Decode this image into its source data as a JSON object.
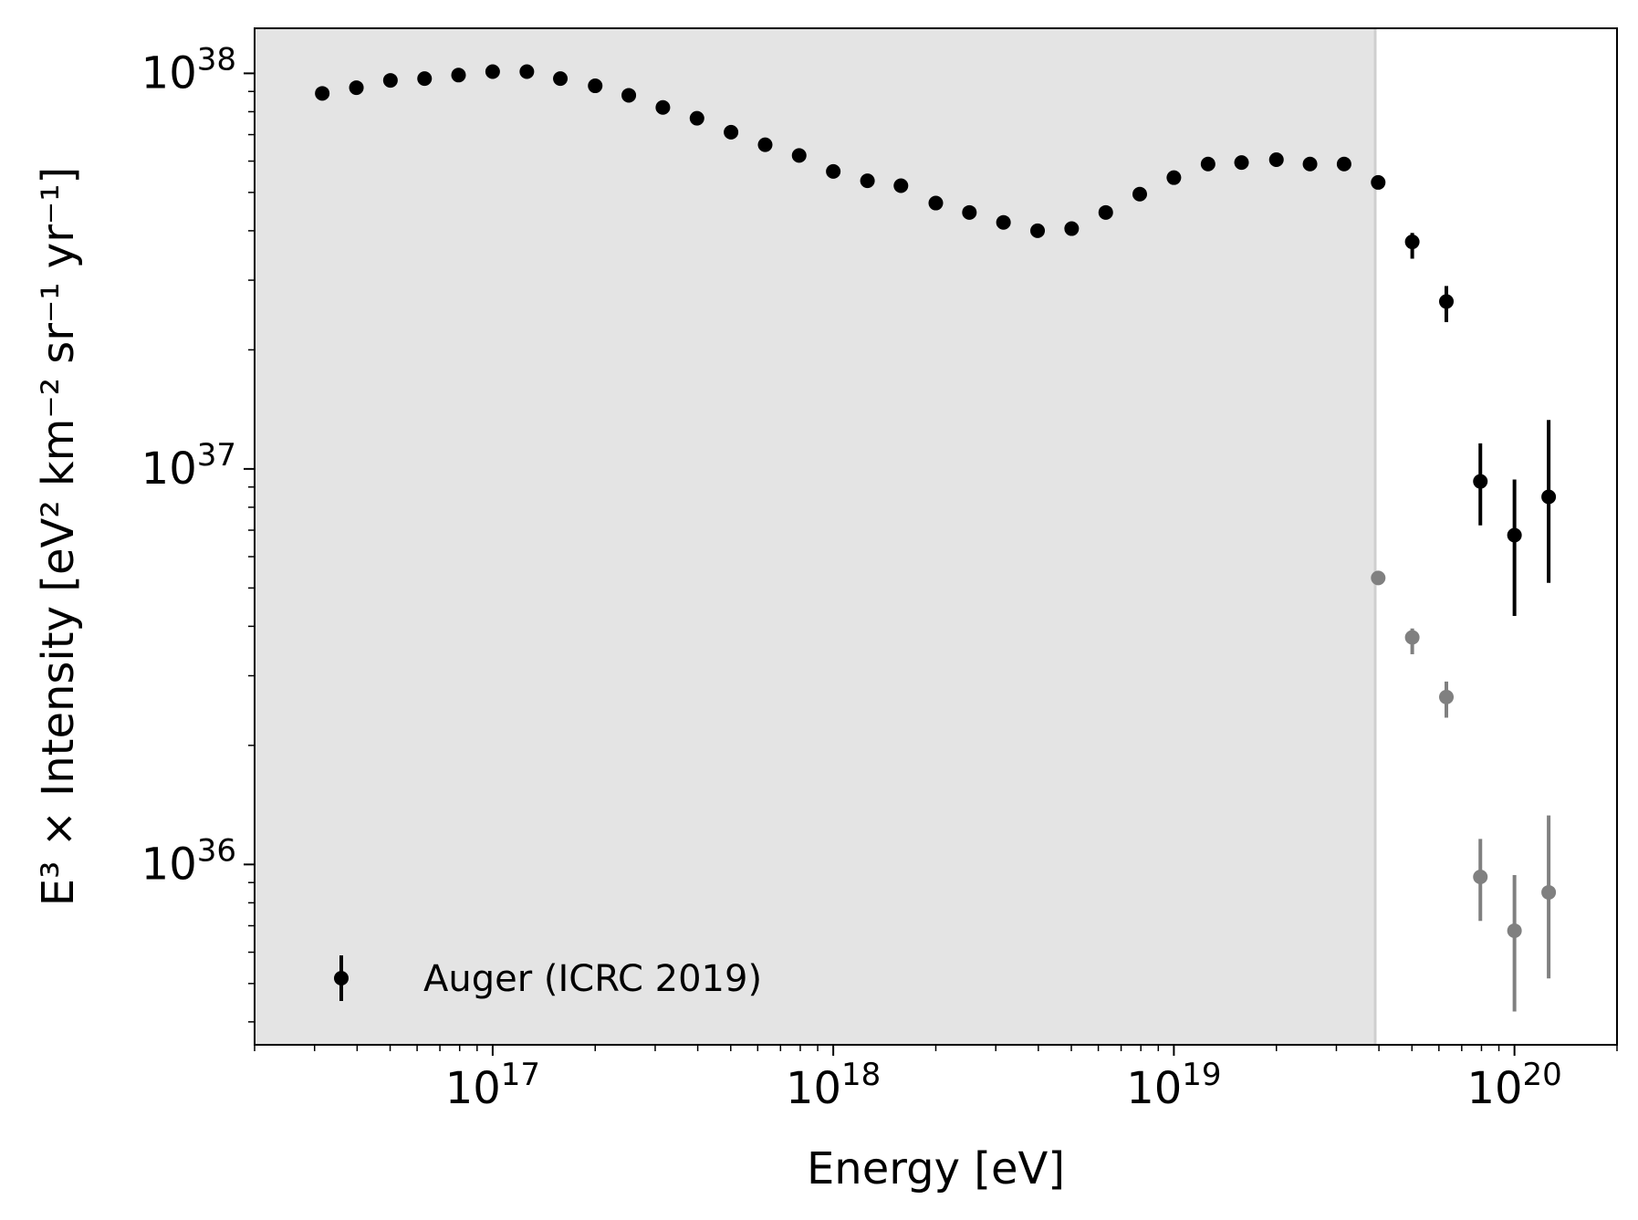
{
  "chart_data": {
    "type": "scatter",
    "title": "",
    "xlabel": "Energy [eV]",
    "ylabel": "E³ × Intensity [eV² km⁻² sr⁻¹ yr⁻¹]",
    "x_scale": "log",
    "y_scale": "log",
    "xlim": [
      2e+16,
      2e+20
    ],
    "ylim": [
      3.5e+35,
      1.3e+38
    ],
    "grid": false,
    "legend_position": "bottom-left",
    "x_ticks": [
      {
        "value": 1e+17,
        "base": "10",
        "exp": "17"
      },
      {
        "value": 1e+18,
        "base": "10",
        "exp": "18"
      },
      {
        "value": 1e+19,
        "base": "10",
        "exp": "19"
      },
      {
        "value": 1e+20,
        "base": "10",
        "exp": "20"
      }
    ],
    "y_ticks": [
      {
        "value": 1e+36,
        "base": "10",
        "exp": "36"
      },
      {
        "value": 1e+37,
        "base": "10",
        "exp": "37"
      },
      {
        "value": 1e+38,
        "base": "10",
        "exp": "38"
      }
    ],
    "shaded_region": {
      "x_from": 2e+16,
      "x_to": 3.9e+19,
      "color": "#e4e4e4"
    },
    "series": [
      {
        "name": "Auger (ICRC 2019)",
        "color": "#000000",
        "points": [
          {
            "x": 3.16e+16,
            "y": 8.9e+37
          },
          {
            "x": 3.98e+16,
            "y": 9.2e+37
          },
          {
            "x": 5.01e+16,
            "y": 9.6e+37
          },
          {
            "x": 6.31e+16,
            "y": 9.7e+37
          },
          {
            "x": 7.94e+16,
            "y": 9.9e+37
          },
          {
            "x": 1e+17,
            "y": 1.01e+38
          },
          {
            "x": 1.26e+17,
            "y": 1.01e+38
          },
          {
            "x": 1.58e+17,
            "y": 9.7e+37
          },
          {
            "x": 2e+17,
            "y": 9.3e+37
          },
          {
            "x": 2.51e+17,
            "y": 8.8e+37
          },
          {
            "x": 3.16e+17,
            "y": 8.2e+37
          },
          {
            "x": 3.98e+17,
            "y": 7.7e+37
          },
          {
            "x": 5.01e+17,
            "y": 7.1e+37
          },
          {
            "x": 6.31e+17,
            "y": 6.6e+37
          },
          {
            "x": 7.94e+17,
            "y": 6.2e+37
          },
          {
            "x": 1e+18,
            "y": 5.65e+37
          },
          {
            "x": 1.26e+18,
            "y": 5.35e+37
          },
          {
            "x": 1.58e+18,
            "y": 5.2e+37
          },
          {
            "x": 2e+18,
            "y": 4.7e+37
          },
          {
            "x": 2.51e+18,
            "y": 4.45e+37
          },
          {
            "x": 3.16e+18,
            "y": 4.2e+37
          },
          {
            "x": 3.98e+18,
            "y": 4e+37
          },
          {
            "x": 5.01e+18,
            "y": 4.05e+37
          },
          {
            "x": 6.31e+18,
            "y": 4.45e+37
          },
          {
            "x": 7.94e+18,
            "y": 4.95e+37
          },
          {
            "x": 1e+19,
            "y": 5.45e+37
          },
          {
            "x": 1.26e+19,
            "y": 5.9e+37
          },
          {
            "x": 1.58e+19,
            "y": 5.95e+37
          },
          {
            "x": 2e+19,
            "y": 6.05e+37
          },
          {
            "x": 2.51e+19,
            "y": 5.9e+37
          },
          {
            "x": 3.16e+19,
            "y": 5.9e+37
          },
          {
            "x": 3.98e+19,
            "y": 5.3e+37
          },
          {
            "x": 5.01e+19,
            "y": 3.75e+37,
            "yerr_low": 3.4e+37,
            "yerr_high": 3.95e+37
          },
          {
            "x": 6.31e+19,
            "y": 2.65e+37,
            "yerr_low": 2.35e+37,
            "yerr_high": 2.9e+37
          },
          {
            "x": 7.94e+19,
            "y": 9.3e+36,
            "yerr_low": 7.2e+36,
            "yerr_high": 1.16e+37
          },
          {
            "x": 1e+20,
            "y": 6.8e+36,
            "yerr_low": 4.25e+36,
            "yerr_high": 9.4e+36
          },
          {
            "x": 1.26e+20,
            "y": 8.5e+36,
            "yerr_low": 5.15e+36,
            "yerr_high": 1.33e+37
          }
        ]
      },
      {
        "color": "#808080",
        "points": [
          {
            "x": 3.98e+19,
            "y": 5.3e+36
          },
          {
            "x": 5.01e+19,
            "y": 3.75e+36,
            "yerr_low": 3.4e+36,
            "yerr_high": 3.95e+36
          },
          {
            "x": 6.31e+19,
            "y": 2.65e+36,
            "yerr_low": 2.35e+36,
            "yerr_high": 2.9e+36
          },
          {
            "x": 7.94e+19,
            "y": 9.3e+35,
            "yerr_low": 7.2e+35,
            "yerr_high": 1.16e+36
          },
          {
            "x": 1e+20,
            "y": 6.8e+35,
            "yerr_low": 4.25e+35,
            "yerr_high": 9.4e+35
          },
          {
            "x": 1.26e+20,
            "y": 8.5e+35,
            "yerr_low": 5.15e+35,
            "yerr_high": 1.33e+36
          }
        ]
      }
    ],
    "legend": [
      {
        "label": "Auger (ICRC 2019)",
        "color": "#000000"
      }
    ]
  }
}
